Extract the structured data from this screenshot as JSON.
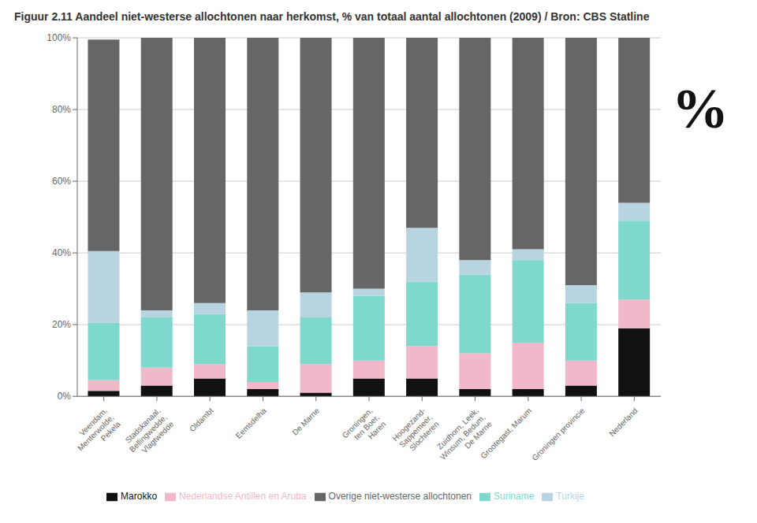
{
  "chart_data": {
    "type": "bar",
    "stacked": true,
    "grid": true,
    "legend": "bottom",
    "title": "Figuur 2.11 Aandeel niet-westerse allochtonen naar herkomst, % van totaal aantal allochtonen (2009) / Bron: CBS Statline",
    "annotations": [
      "%"
    ],
    "categories": [
      "Veendam,\nMenterwolde,\nPekela",
      "Stadskanaal,\nBellingwedde,\nVlagtwedde",
      "Oldambt",
      "Eemsdelha",
      "De Marne",
      "Groningen,\nten Boer,\nHaren",
      "Hoogezand-\nSappemeer,\nSlochteren",
      "Zuidhorn, Leek,\nWinsum, Bedum,\nDe Marne",
      "Grootegast, Marum",
      "Groningen provincie",
      "Nederland"
    ],
    "series": [
      {
        "name": "Marokko",
        "color": "#111111",
        "values": [
          1.5,
          3,
          5,
          2,
          1,
          5,
          5,
          2,
          2,
          3,
          19
        ]
      },
      {
        "name": "Nederlandse Antillen en Aruba",
        "color": "#f0b8c8",
        "values": [
          3,
          5,
          4,
          2,
          8,
          5,
          9,
          10,
          13,
          7,
          8
        ]
      },
      {
        "name": "Suriname",
        "color": "#7ed8cc",
        "values": [
          16,
          14,
          14,
          10,
          13,
          18,
          18,
          22,
          23,
          16,
          22
        ]
      },
      {
        "name": "Turkije",
        "color": "#b8d4e0",
        "values": [
          20,
          2,
          3,
          10,
          7,
          2,
          15,
          4,
          3,
          5,
          5
        ]
      },
      {
        "name": "Overige niet-westerse allochtonen",
        "color": "#666666",
        "values": [
          59,
          76,
          74,
          76,
          71,
          70,
          53,
          62,
          59,
          69,
          46
        ]
      }
    ],
    "ylim": [
      0,
      100
    ],
    "yticks": [
      {
        "value": 0,
        "label": "0%"
      },
      {
        "value": 20,
        "label": "20%"
      },
      {
        "value": 40,
        "label": "40%"
      },
      {
        "value": 60,
        "label": "60%"
      },
      {
        "value": 80,
        "label": "80%"
      },
      {
        "value": 100,
        "label": "100%"
      }
    ]
  }
}
